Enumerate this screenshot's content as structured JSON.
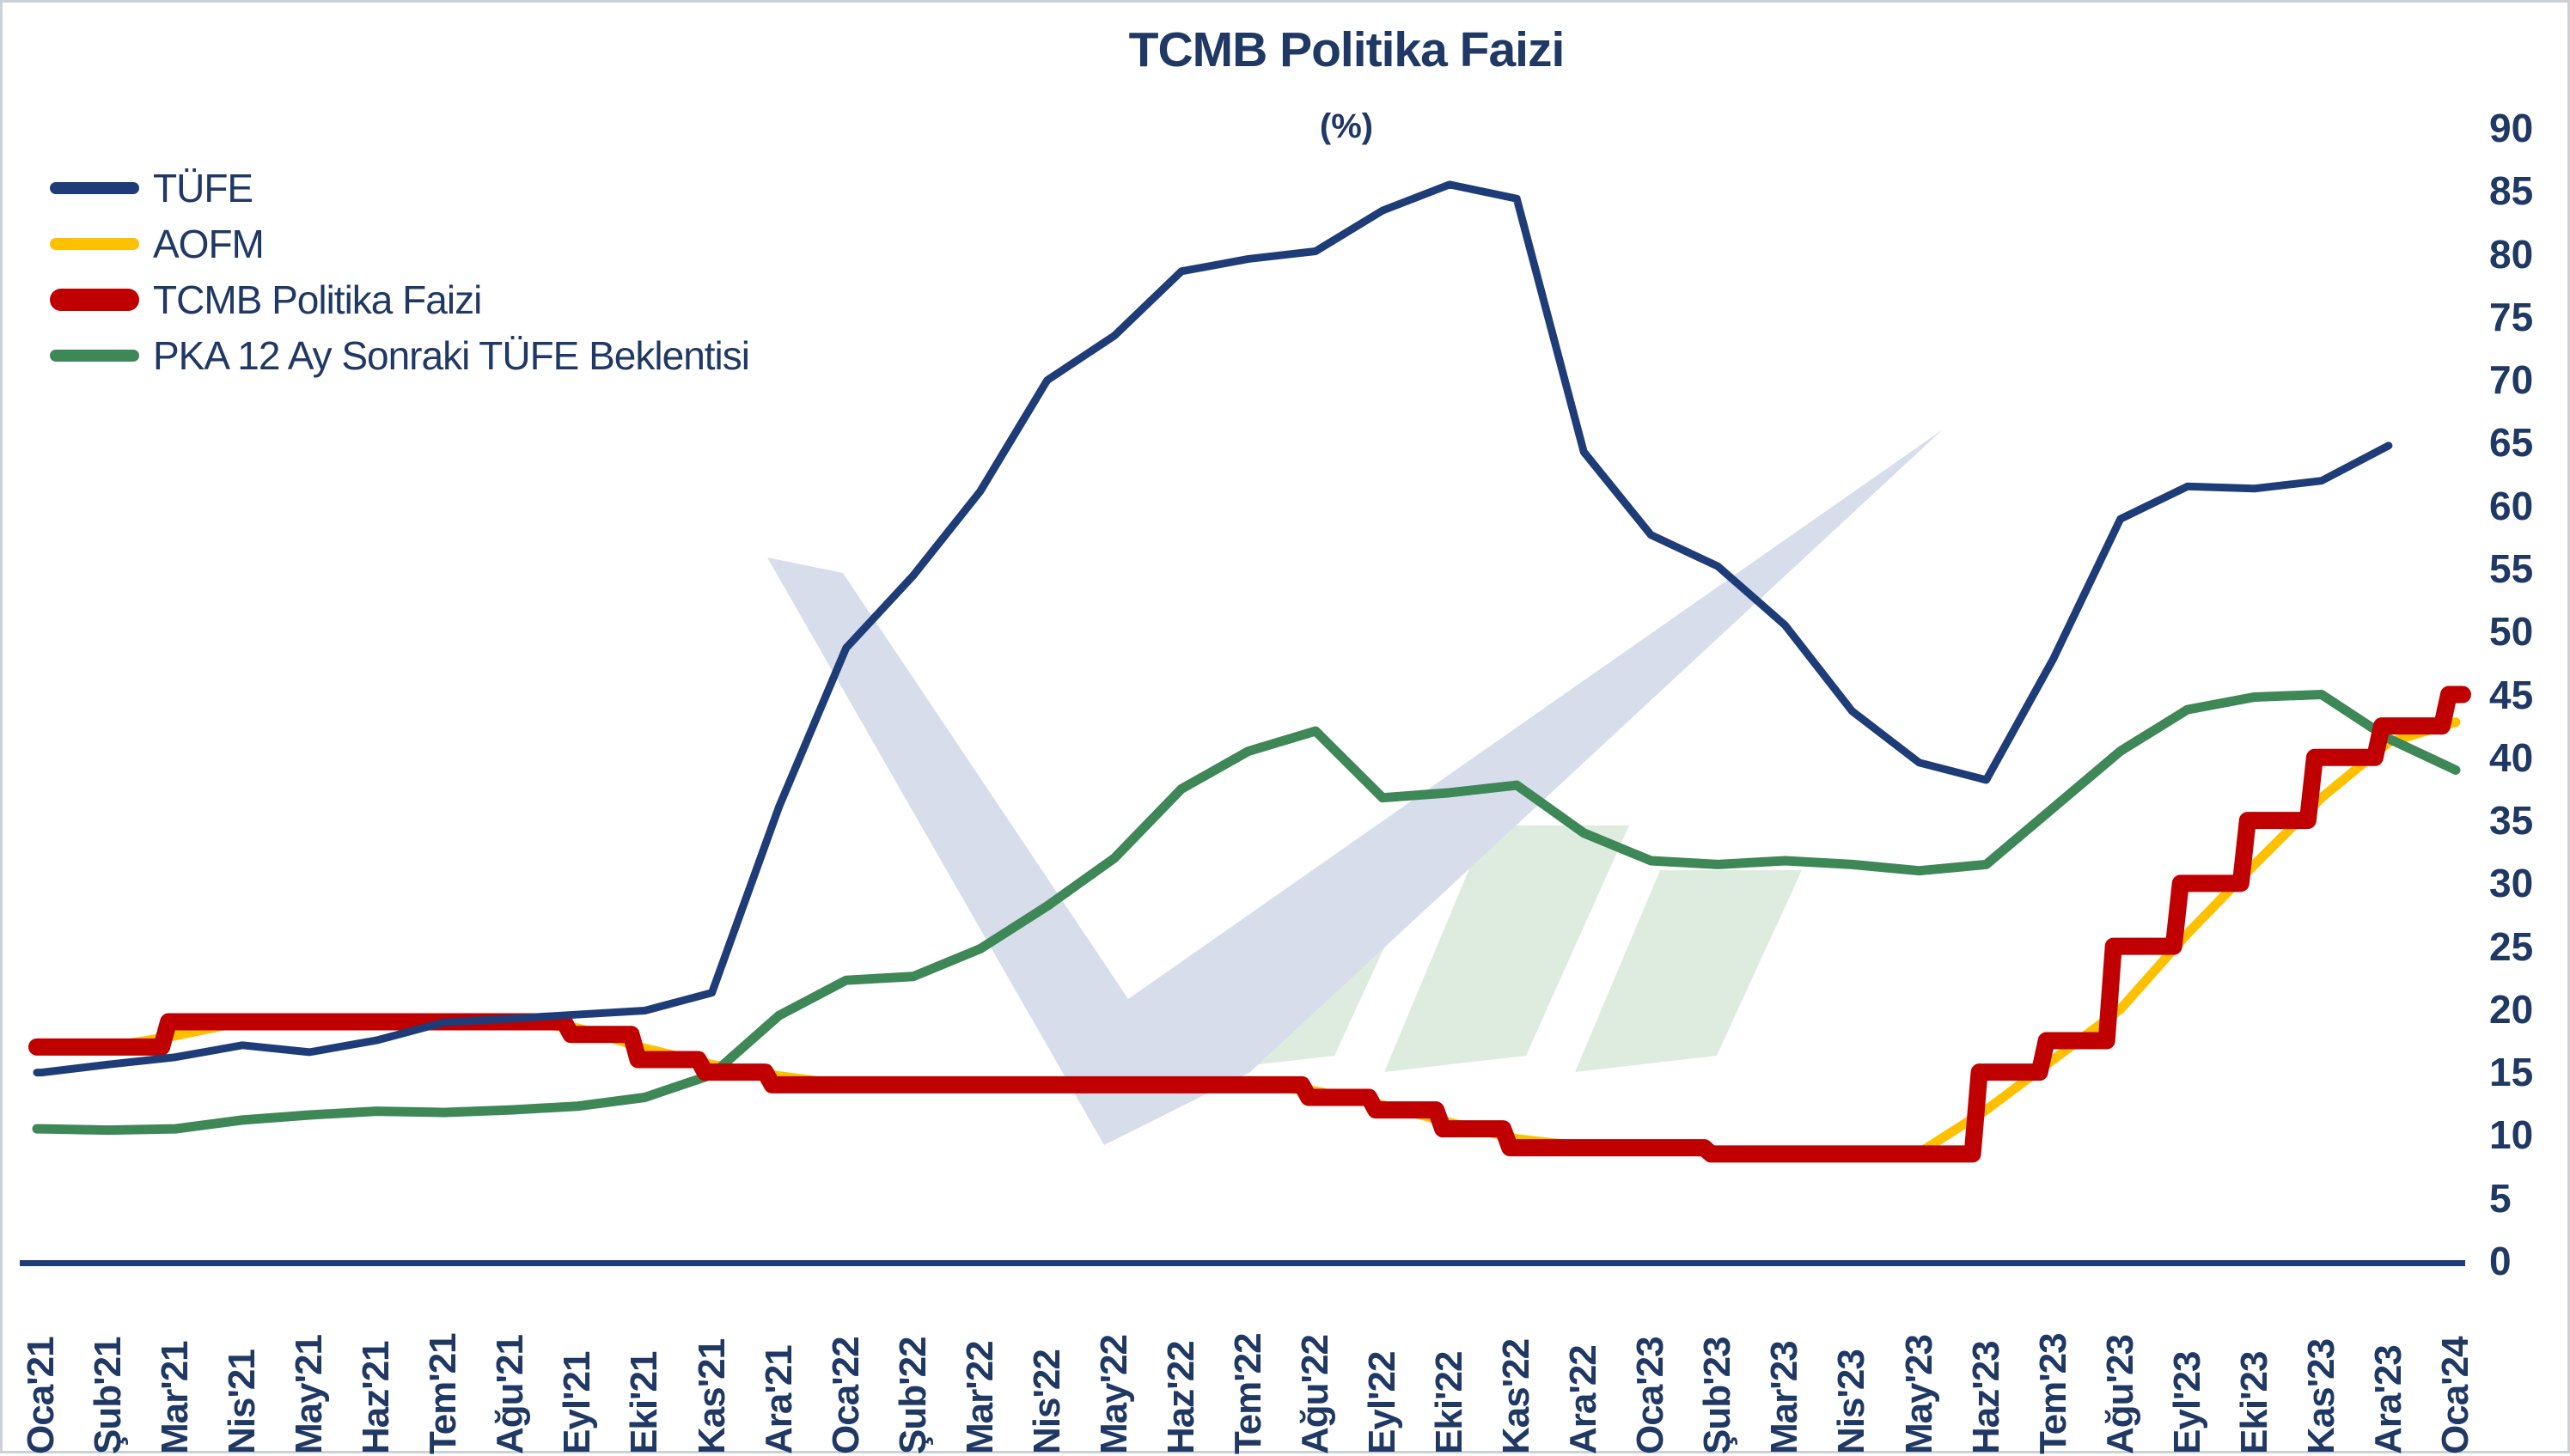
{
  "title": "TCMB Politika Faizi",
  "subtitle": "(%)",
  "colors": {
    "text_navy": "#1f3864",
    "axis_line": "#1e3c78",
    "background": "#ffffff",
    "watermark_blue": "#d8ddec",
    "watermark_green": "#deecdf"
  },
  "chart_data": {
    "type": "line",
    "title": "TCMB Politika Faizi",
    "subtitle": "(%)",
    "xlabel": "",
    "ylabel": "",
    "ylim": [
      0,
      90
    ],
    "ytick_step": 5,
    "yticks": [
      90,
      85,
      80,
      75,
      70,
      65,
      60,
      55,
      50,
      45,
      40,
      35,
      30,
      25,
      20,
      15,
      10,
      5,
      0
    ],
    "grid": false,
    "legend_position": "top-left",
    "categories": [
      "Oca'21",
      "Şub'21",
      "Mar'21",
      "Nis'21",
      "May'21",
      "Haz'21",
      "Tem'21",
      "Ağu'21",
      "Eyl'21",
      "Eki'21",
      "Kas'21",
      "Ara'21",
      "Oca'22",
      "Şub'22",
      "Mar'22",
      "Nis'22",
      "May'22",
      "Haz'22",
      "Tem'22",
      "Ağu'22",
      "Eyl'22",
      "Eki'22",
      "Kas'22",
      "Ara'22",
      "Oca'23",
      "Şub'23",
      "Mar'23",
      "Nis'23",
      "May'23",
      "Haz'23",
      "Tem'23",
      "Ağu'23",
      "Eyl'23",
      "Eki'23",
      "Kas'23",
      "Ara'23",
      "Oca'24"
    ],
    "series": [
      {
        "name": "TÜFE",
        "color": "#1e3c78",
        "width": 9,
        "style": "line",
        "z": 4,
        "values": [
          14.97,
          15.61,
          16.19,
          17.14,
          16.59,
          17.53,
          18.95,
          19.25,
          19.58,
          19.89,
          21.31,
          36.08,
          48.69,
          54.44,
          61.14,
          69.97,
          73.5,
          78.62,
          79.6,
          80.21,
          83.45,
          85.51,
          84.39,
          64.27,
          57.68,
          55.18,
          50.51,
          43.68,
          39.59,
          38.21,
          47.83,
          58.94,
          61.53,
          61.36,
          61.98,
          64.77,
          null
        ]
      },
      {
        "name": "AOFM",
        "color": "#ffc000",
        "width": 11,
        "style": "line",
        "z": 1,
        "values": [
          17.0,
          17.0,
          17.9,
          19.0,
          19.0,
          19.0,
          19.0,
          19.0,
          18.5,
          16.9,
          15.6,
          14.7,
          14.0,
          14.0,
          14.0,
          14.0,
          14.0,
          14.0,
          14.0,
          13.5,
          12.4,
          11.0,
          9.7,
          9.1,
          8.9,
          8.6,
          8.5,
          8.5,
          8.6,
          12.0,
          16.0,
          20.0,
          26.0,
          31.5,
          36.8,
          41.2,
          42.8
        ]
      },
      {
        "name": "TCMB Politika Faizi",
        "color": "#c00000",
        "width": 20,
        "style": "step",
        "z": 3,
        "values": [
          17,
          17,
          19,
          19,
          19,
          19,
          19,
          19,
          18,
          16,
          15,
          14,
          14,
          14,
          14,
          14,
          14,
          14,
          14,
          13,
          12,
          10.5,
          9,
          9,
          9,
          8.5,
          8.5,
          8.5,
          8.5,
          15,
          17.5,
          25,
          30,
          35,
          40,
          42.5,
          45
        ]
      },
      {
        "name": "PKA 12 Ay Sonraki TÜFE Beklentisi",
        "color": "#3e8756",
        "width": 11,
        "style": "line",
        "z": 2,
        "values": [
          10.5,
          10.4,
          10.5,
          11.2,
          11.6,
          11.9,
          11.8,
          12.0,
          12.3,
          13.0,
          14.8,
          19.5,
          22.3,
          22.6,
          24.8,
          28.2,
          32.0,
          37.5,
          40.5,
          42.1,
          36.8,
          37.2,
          37.8,
          34.0,
          31.8,
          31.5,
          31.8,
          31.5,
          31.0,
          31.5,
          36.0,
          40.5,
          43.8,
          44.8,
          45.0,
          41.5,
          39.0
        ]
      }
    ]
  }
}
